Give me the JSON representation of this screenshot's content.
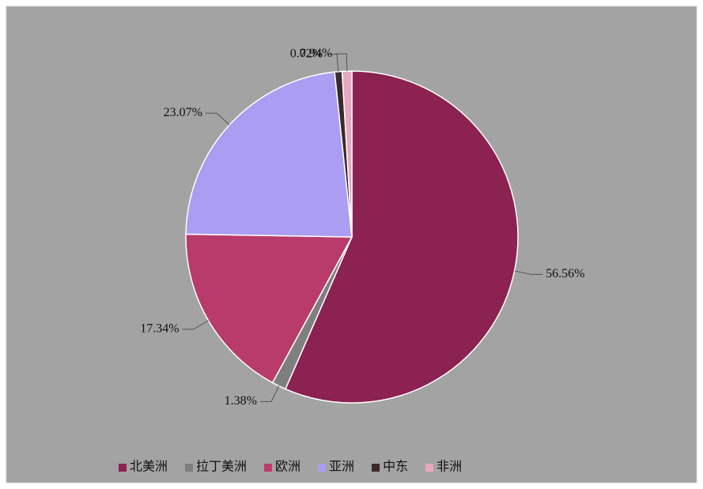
{
  "chart_data": {
    "type": "pie",
    "categories": [
      "北美洲",
      "拉丁美洲",
      "欧洲",
      "亚洲",
      "中东",
      "非洲"
    ],
    "values": [
      56.56,
      1.38,
      17.34,
      23.07,
      0.72,
      0.94
    ],
    "value_labels": [
      "56.56%",
      "1.38%",
      "17.34%",
      "23.07%",
      "0.72%",
      "0.94%"
    ],
    "colors": [
      "#8b2252",
      "#7f7f7f",
      "#b83b6b",
      "#ab9df2",
      "#3a2a2a",
      "#e8a6c0"
    ],
    "legend": "bottom"
  }
}
